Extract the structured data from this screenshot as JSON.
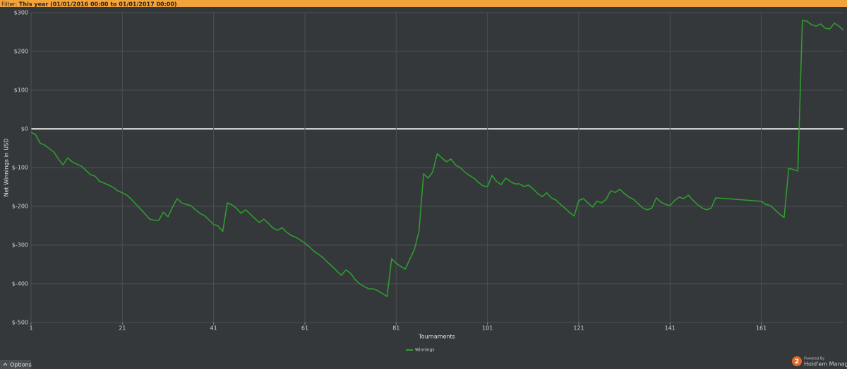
{
  "filter": {
    "label": "Filter:",
    "value": "This year (01/01/2016 00:00 to 01/01/2017 00:00)"
  },
  "chart_data": {
    "type": "line",
    "x_label": "Tournaments",
    "y_label": "Net Winnings in USD",
    "x": [
      1,
      2,
      3,
      4,
      5,
      6,
      7,
      8,
      9,
      10,
      11,
      12,
      13,
      14,
      15,
      16,
      17,
      18,
      19,
      20,
      21,
      22,
      23,
      24,
      25,
      26,
      27,
      28,
      29,
      30,
      31,
      32,
      33,
      34,
      35,
      36,
      37,
      38,
      39,
      40,
      41,
      42,
      43,
      44,
      45,
      46,
      47,
      48,
      49,
      50,
      51,
      52,
      53,
      54,
      55,
      56,
      57,
      58,
      59,
      60,
      61,
      62,
      63,
      64,
      65,
      66,
      67,
      68,
      69,
      70,
      71,
      72,
      73,
      74,
      75,
      76,
      77,
      78,
      79,
      80,
      81,
      82,
      83,
      84,
      85,
      86,
      87,
      88,
      89,
      90,
      91,
      92,
      93,
      94,
      95,
      96,
      97,
      98,
      99,
      100,
      101,
      102,
      103,
      104,
      105,
      106,
      107,
      108,
      109,
      110,
      111,
      112,
      113,
      114,
      115,
      116,
      117,
      118,
      119,
      120,
      121,
      122,
      123,
      124,
      125,
      126,
      127,
      128,
      129,
      130,
      131,
      132,
      133,
      134,
      135,
      136,
      137,
      138,
      139,
      140,
      141,
      142,
      143,
      144,
      145,
      146,
      147,
      148,
      149,
      150,
      151,
      161,
      162,
      163,
      164,
      165,
      166,
      167,
      168,
      169,
      170,
      171,
      172,
      173,
      174,
      175,
      176,
      177,
      178,
      179
    ],
    "series": [
      {
        "name": "Winnings",
        "color": "#2ea12e",
        "values": [
          -9,
          -15,
          -37,
          -42,
          -51,
          -60,
          -78,
          -93,
          -75,
          -85,
          -91,
          -96,
          -107,
          -118,
          -122,
          -135,
          -140,
          -145,
          -151,
          -160,
          -165,
          -171,
          -182,
          -195,
          -207,
          -220,
          -233,
          -236,
          -236,
          -215,
          -227,
          -202,
          -180,
          -191,
          -195,
          -198,
          -209,
          -218,
          -224,
          -235,
          -247,
          -251,
          -265,
          -191,
          -196,
          -205,
          -218,
          -209,
          -220,
          -231,
          -242,
          -233,
          -244,
          -256,
          -262,
          -255,
          -267,
          -275,
          -280,
          -287,
          -295,
          -305,
          -316,
          -324,
          -333,
          -345,
          -355,
          -367,
          -378,
          -364,
          -373,
          -389,
          -400,
          -407,
          -413,
          -413,
          -418,
          -425,
          -433,
          -335,
          -347,
          -355,
          -362,
          -336,
          -311,
          -264,
          -116,
          -127,
          -111,
          -64,
          -75,
          -85,
          -78,
          -93,
          -100,
          -111,
          -120,
          -127,
          -138,
          -147,
          -149,
          -120,
          -136,
          -144,
          -127,
          -136,
          -142,
          -142,
          -149,
          -145,
          -155,
          -167,
          -175,
          -165,
          -178,
          -184,
          -195,
          -205,
          -216,
          -225,
          -185,
          -180,
          -191,
          -202,
          -187,
          -191,
          -182,
          -160,
          -164,
          -156,
          -167,
          -176,
          -182,
          -193,
          -204,
          -209,
          -205,
          -178,
          -189,
          -195,
          -198,
          -185,
          -176,
          -180,
          -171,
          -184,
          -195,
          -204,
          -209,
          -205,
          -178,
          -187,
          -195,
          -198,
          -209,
          -220,
          -229,
          -102,
          -105,
          -109,
          280,
          278,
          269,
          265,
          271,
          260,
          258,
          273,
          265,
          255
        ]
      }
    ],
    "xlim": [
      1,
      179
    ],
    "ylim": [
      -500,
      300
    ],
    "xticks": [
      1,
      21,
      41,
      61,
      81,
      101,
      121,
      141,
      161
    ],
    "yticks": [
      {
        "value": -500,
        "label": "$-500"
      },
      {
        "value": -400,
        "label": "$-400"
      },
      {
        "value": -300,
        "label": "$-300"
      },
      {
        "value": -200,
        "label": "$-200"
      },
      {
        "value": -100,
        "label": "$-100"
      },
      {
        "value": 0,
        "label": "$0"
      },
      {
        "value": 100,
        "label": "$100"
      },
      {
        "value": 200,
        "label": "$200"
      },
      {
        "value": 300,
        "label": "$300"
      }
    ],
    "grid": true,
    "grid_color": "#4b4f53",
    "zero_line_color": "#ffffff",
    "legend": "bottom"
  },
  "ui": {
    "options": "Options",
    "logo_number": "2",
    "powered_by": "Powered By",
    "brand": "Hold'em Manager"
  }
}
